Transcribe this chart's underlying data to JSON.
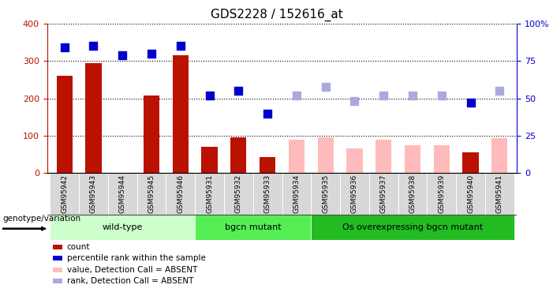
{
  "title": "GDS2228 / 152616_at",
  "samples": [
    "GSM95942",
    "GSM95943",
    "GSM95944",
    "GSM95945",
    "GSM95946",
    "GSM95931",
    "GSM95932",
    "GSM95933",
    "GSM95934",
    "GSM95935",
    "GSM95936",
    "GSM95937",
    "GSM95938",
    "GSM95939",
    "GSM95940",
    "GSM95941"
  ],
  "groups": [
    {
      "name": "wild-type",
      "start": 0,
      "end": 5,
      "color": "#ccffcc"
    },
    {
      "name": "bgcn mutant",
      "start": 5,
      "end": 9,
      "color": "#66ee66"
    },
    {
      "name": "Os overexpressing bgcn mutant",
      "start": 9,
      "end": 16,
      "color": "#22cc22"
    }
  ],
  "count_present": [
    260,
    295,
    null,
    207,
    315,
    70,
    95,
    42,
    null,
    null,
    null,
    null,
    null,
    null,
    55,
    null
  ],
  "value_absent": [
    null,
    null,
    null,
    null,
    null,
    null,
    null,
    null,
    90,
    95,
    67,
    90,
    75,
    75,
    null,
    93
  ],
  "rank_present": [
    84,
    85,
    79,
    80,
    85,
    52,
    55,
    40,
    null,
    null,
    null,
    null,
    null,
    null,
    47,
    null
  ],
  "rank_absent": [
    null,
    null,
    null,
    null,
    null,
    null,
    null,
    null,
    52,
    58,
    48,
    52,
    52,
    52,
    null,
    55
  ],
  "ylim_left": [
    0,
    400
  ],
  "ylim_right": [
    0,
    100
  ],
  "yticks_left": [
    0,
    100,
    200,
    300,
    400
  ],
  "yticks_right": [
    0,
    25,
    50,
    75,
    100
  ],
  "color_count": "#bb1100",
  "color_rank": "#0000cc",
  "color_value_absent": "#ffbbbb",
  "color_rank_absent": "#aaaadd",
  "bar_width": 0.55,
  "marker_size": 48,
  "genotype_label": "genotype/variation"
}
